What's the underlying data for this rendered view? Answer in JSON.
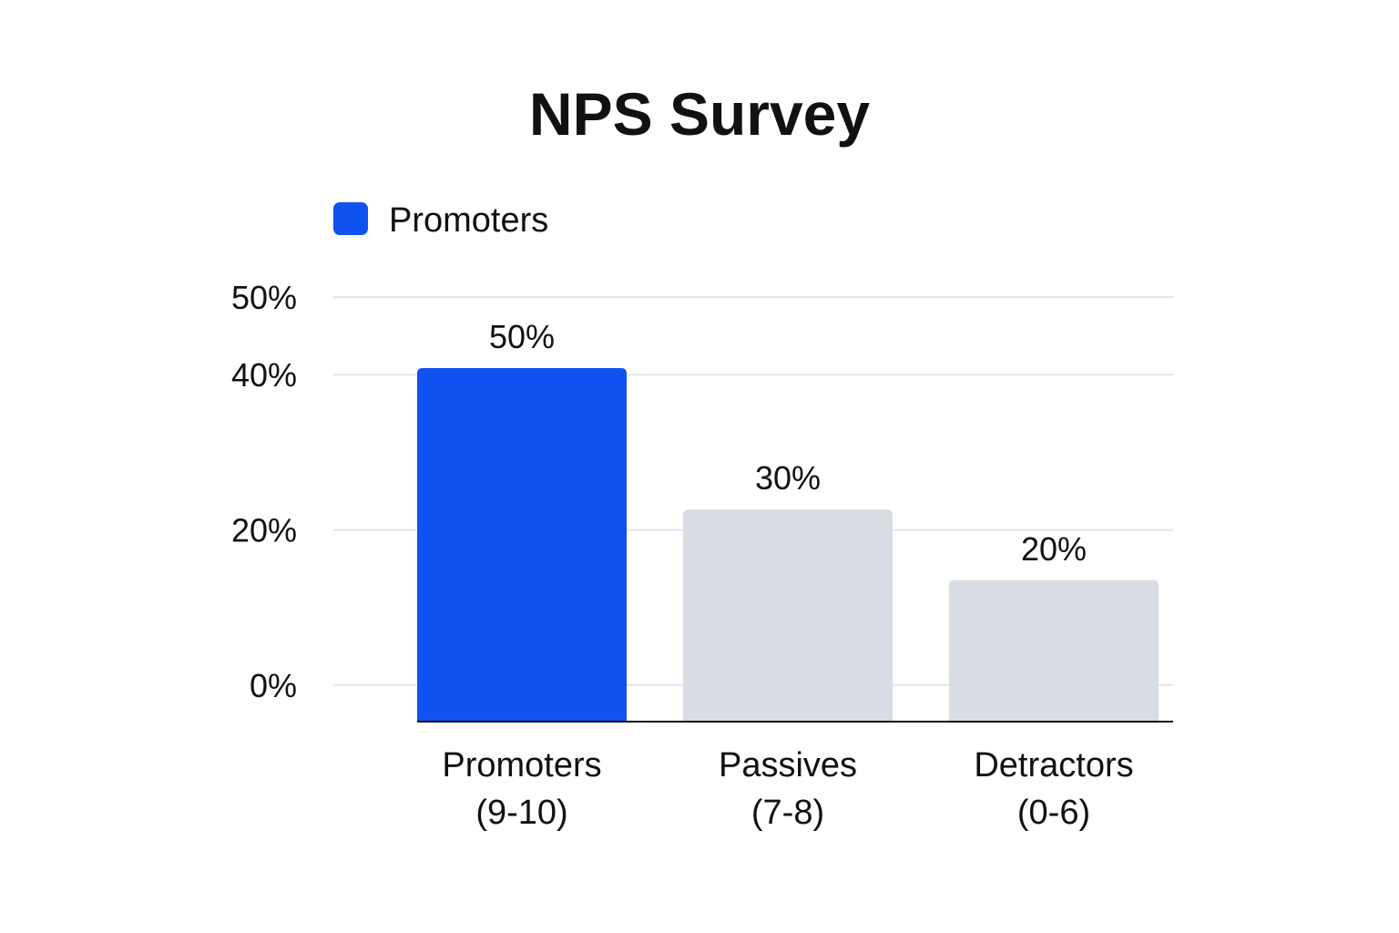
{
  "chart_data": {
    "type": "bar",
    "title": "NPS Survey",
    "xlabel": "",
    "ylabel": "",
    "categories": [
      "Promoters\n(9-10)",
      "Passives\n(7-8)",
      "Detractors\n(0-6)"
    ],
    "values": [
      50,
      30,
      20
    ],
    "data_labels": [
      "50%",
      "30%",
      "20%"
    ],
    "y_ticks": [
      {
        "value": 0,
        "label": "0%"
      },
      {
        "value": 20,
        "label": "20%"
      },
      {
        "value": 40,
        "label": "40%"
      },
      {
        "value": 50,
        "label": "50%"
      }
    ],
    "ylim": [
      0,
      50
    ],
    "grid": true,
    "legend": {
      "placement": "top-left",
      "entries": [
        {
          "label": "Promoters",
          "color": "#0f52f0"
        }
      ]
    },
    "bar_colors": [
      "#0f52f0",
      "#d8dce3",
      "#d8dce3"
    ],
    "colors": {
      "highlight": "#0f52f0",
      "muted": "#d8dce3",
      "grid": "#e3e6ec",
      "axis": "#111111"
    }
  }
}
